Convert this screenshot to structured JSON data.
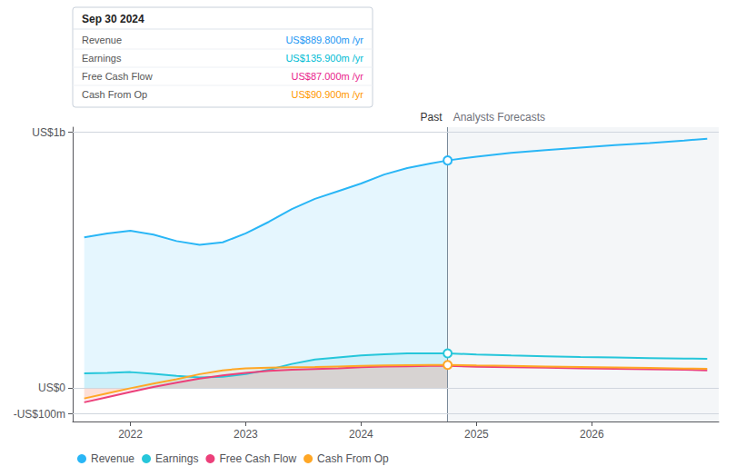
{
  "chart_data": {
    "type": "line",
    "x": [
      2021.6,
      2021.8,
      2022.0,
      2022.2,
      2022.4,
      2022.6,
      2022.8,
      2023.0,
      2023.2,
      2023.4,
      2023.6,
      2023.8,
      2024.0,
      2024.2,
      2024.4,
      2024.6,
      2024.75,
      2025.0,
      2025.3,
      2025.6,
      2025.9,
      2026.2,
      2026.5,
      2026.8,
      2027.0
    ],
    "series": [
      {
        "name": "Revenue",
        "color": "#29b6f6",
        "values": [
          590,
          605,
          615,
          600,
          575,
          560,
          570,
          605,
          650,
          700,
          740,
          770,
          800,
          835,
          860,
          878,
          890,
          905,
          920,
          930,
          940,
          950,
          958,
          968,
          975
        ]
      },
      {
        "name": "Earnings",
        "color": "#26c6da",
        "values": [
          58,
          60,
          63,
          56,
          48,
          42,
          45,
          55,
          72,
          95,
          112,
          120,
          128,
          133,
          136,
          136,
          136,
          132,
          128,
          125,
          122,
          120,
          118,
          116,
          115
        ]
      },
      {
        "name": "Free Cash Flow",
        "color": "#ec407a",
        "values": [
          -55,
          -35,
          -15,
          5,
          22,
          38,
          50,
          60,
          68,
          72,
          75,
          78,
          82,
          85,
          86,
          87,
          87,
          84,
          82,
          80,
          78,
          76,
          74,
          72,
          70
        ]
      },
      {
        "name": "Cash From Op",
        "color": "#ffa726",
        "values": [
          -40,
          -20,
          0,
          18,
          35,
          55,
          70,
          78,
          80,
          82,
          83,
          85,
          87,
          89,
          90,
          91,
          91,
          89,
          87,
          85,
          83,
          81,
          79,
          77,
          76
        ]
      }
    ],
    "xlim": [
      2021.5,
      2027.1
    ],
    "xticks": [
      2022,
      2023,
      2024,
      2025,
      2026
    ],
    "ylim": [
      -130,
      1020
    ],
    "yticks": [
      {
        "value": 1000,
        "label": "US$1b"
      },
      {
        "value": 0,
        "label": "US$0"
      },
      {
        "value": -100,
        "label": "-US$100m"
      }
    ],
    "grid": true,
    "legend": "lower left",
    "divider": {
      "x": 2024.75,
      "left_label": "Past",
      "right_label": "Analysts Forecasts",
      "points": [
        {
          "series": "Revenue",
          "y": 890
        },
        {
          "series": "Earnings",
          "y": 136
        },
        {
          "series": "Cash From Op",
          "y": 91
        }
      ]
    },
    "info_box": {
      "title": "Sep 30 2024",
      "rows": [
        {
          "label": "Revenue",
          "value": "US$889.800m /yr",
          "color": "#2196f3"
        },
        {
          "label": "Earnings",
          "value": "US$135.900m /yr",
          "color": "#00bcd4"
        },
        {
          "label": "Free Cash Flow",
          "value": "US$87.000m /yr",
          "color": "#e91e8c"
        },
        {
          "label": "Cash From Op",
          "value": "US$90.900m /yr",
          "color": "#ff9800"
        }
      ]
    }
  }
}
